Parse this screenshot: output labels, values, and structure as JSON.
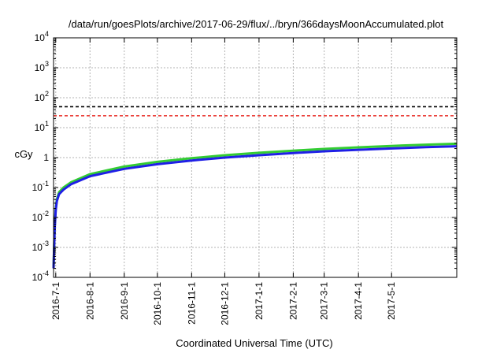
{
  "chart_data": {
    "type": "line",
    "title": "/data/run/goesPlots/archive/2017-06-29/flux/../bryn/366daysMoonAccumulated.plot",
    "xlabel": "Coordinated Universal Time (UTC)",
    "ylabel": "cGy",
    "yscale": "log",
    "ylim": [
      0.0001,
      10000
    ],
    "xlim": [
      "2016-06-29",
      "2017-06-29"
    ],
    "grid": true,
    "y_ticks": [
      {
        "base": "10",
        "exp": "-4",
        "value": 0.0001
      },
      {
        "base": "10",
        "exp": "-3",
        "value": 0.001
      },
      {
        "base": "10",
        "exp": "-2",
        "value": 0.01
      },
      {
        "base": "10",
        "exp": "-1",
        "value": 0.1
      },
      {
        "base": "1",
        "exp": "",
        "value": 1
      },
      {
        "base": "10",
        "exp": "1",
        "value": 10
      },
      {
        "base": "10",
        "exp": "2",
        "value": 100
      },
      {
        "base": "10",
        "exp": "3",
        "value": 1000
      },
      {
        "base": "10",
        "exp": "4",
        "value": 10000
      }
    ],
    "x_ticks": [
      "2016-7-1",
      "2016-8-1",
      "2016-9-1",
      "2016-10-1",
      "2016-11-1",
      "2016-12-1",
      "2017-1-1",
      "2017-2-1",
      "2017-3-1",
      "2017-4-1",
      "2017-5-1"
    ],
    "thresholds": [
      {
        "value": 50,
        "color": "#000000"
      },
      {
        "value": 25,
        "color": "#e8251f"
      }
    ],
    "series": [
      {
        "color": "#33cc33",
        "x": [
          "2016-06-29",
          "2016-06-30",
          "2016-07-01",
          "2016-07-02",
          "2016-07-04",
          "2016-07-08",
          "2016-07-15",
          "2016-08-01",
          "2016-09-01",
          "2016-10-01",
          "2016-11-01",
          "2016-12-01",
          "2017-01-01",
          "2017-02-01",
          "2017-03-01",
          "2017-04-01",
          "2017-05-01",
          "2017-06-01",
          "2017-06-29"
        ],
        "values": [
          0.0002,
          0.005,
          0.02,
          0.04,
          0.07,
          0.1,
          0.15,
          0.28,
          0.5,
          0.72,
          0.95,
          1.2,
          1.45,
          1.7,
          1.95,
          2.2,
          2.45,
          2.7,
          2.9
        ]
      },
      {
        "color": "#1f1fe6",
        "x": [
          "2016-06-29",
          "2016-06-30",
          "2016-07-01",
          "2016-07-02",
          "2016-07-04",
          "2016-07-08",
          "2016-07-15",
          "2016-08-01",
          "2016-09-01",
          "2016-10-01",
          "2016-11-01",
          "2016-12-01",
          "2017-01-01",
          "2017-02-01",
          "2017-03-01",
          "2017-04-01",
          "2017-05-01",
          "2017-06-01",
          "2017-06-29"
        ],
        "values": [
          0.0002,
          0.004,
          0.018,
          0.035,
          0.06,
          0.085,
          0.13,
          0.24,
          0.42,
          0.6,
          0.8,
          1.0,
          1.2,
          1.42,
          1.62,
          1.82,
          2.02,
          2.22,
          2.4
        ]
      }
    ]
  }
}
